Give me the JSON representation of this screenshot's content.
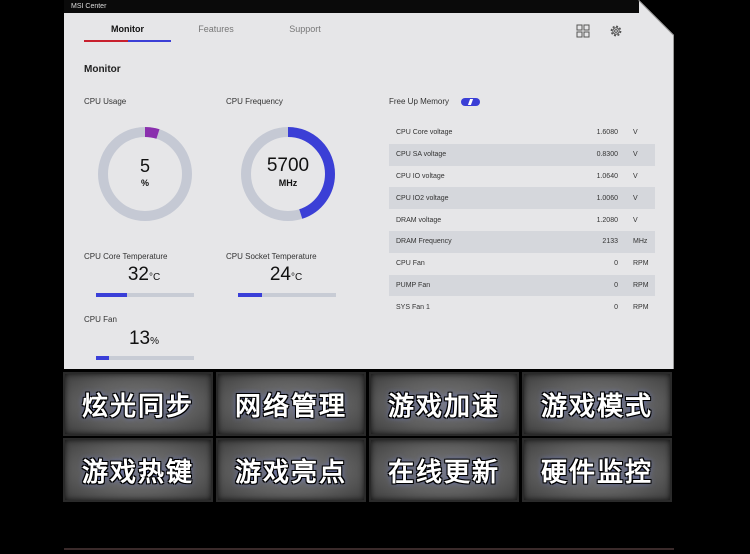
{
  "window": {
    "title": "MSI Center"
  },
  "nav": {
    "tabs": [
      "Monitor",
      "Features",
      "Support"
    ],
    "active": "Monitor"
  },
  "header_icons": [
    "grid-icon",
    "gear-icon"
  ],
  "section_title": "Monitor",
  "cpu_usage": {
    "label": "CPU Usage",
    "value": "5",
    "unit": "%",
    "fraction": 0.05
  },
  "cpu_frequency": {
    "label": "CPU Frequency",
    "value": "5700",
    "unit": "MHz",
    "fraction": 0.45
  },
  "cpu_core_temp": {
    "label": "CPU Core Temperature",
    "value": "32",
    "unit": "°C",
    "fraction": 0.32
  },
  "cpu_socket_temp": {
    "label": "CPU Socket Temperature",
    "value": "24",
    "unit": "°C",
    "fraction": 0.24
  },
  "cpu_fan": {
    "label": "CPU Fan",
    "value": "13",
    "unit": "%",
    "fraction": 0.13
  },
  "free_up_memory": {
    "label": "Free Up Memory",
    "enabled": true
  },
  "voltages": [
    {
      "name": "CPU Core voltage",
      "value": "1.6080",
      "unit": "V"
    },
    {
      "name": "CPU SA voltage",
      "value": "0.8300",
      "unit": "V"
    },
    {
      "name": "CPU IO voltage",
      "value": "1.0640",
      "unit": "V"
    },
    {
      "name": "CPU IO2 voltage",
      "value": "1.0060",
      "unit": "V"
    },
    {
      "name": "DRAM voltage",
      "value": "1.2080",
      "unit": "V"
    },
    {
      "name": "DRAM Frequency",
      "value": "2133",
      "unit": "MHz"
    },
    {
      "name": "CPU Fan",
      "value": "0",
      "unit": "RPM"
    },
    {
      "name": "PUMP Fan",
      "value": "0",
      "unit": "RPM"
    },
    {
      "name": "SYS Fan 1",
      "value": "0",
      "unit": "RPM"
    }
  ],
  "features": [
    "炫光同步",
    "网络管理",
    "游戏加速",
    "游戏模式",
    "游戏热键",
    "游戏亮点",
    "在线更新",
    "硬件监控"
  ],
  "colors": {
    "accent_blue": "#3b3fd6",
    "accent_red": "#c8202e",
    "gauge_track": "#c5c9d4",
    "panel_bg": "#e6e6e8"
  }
}
